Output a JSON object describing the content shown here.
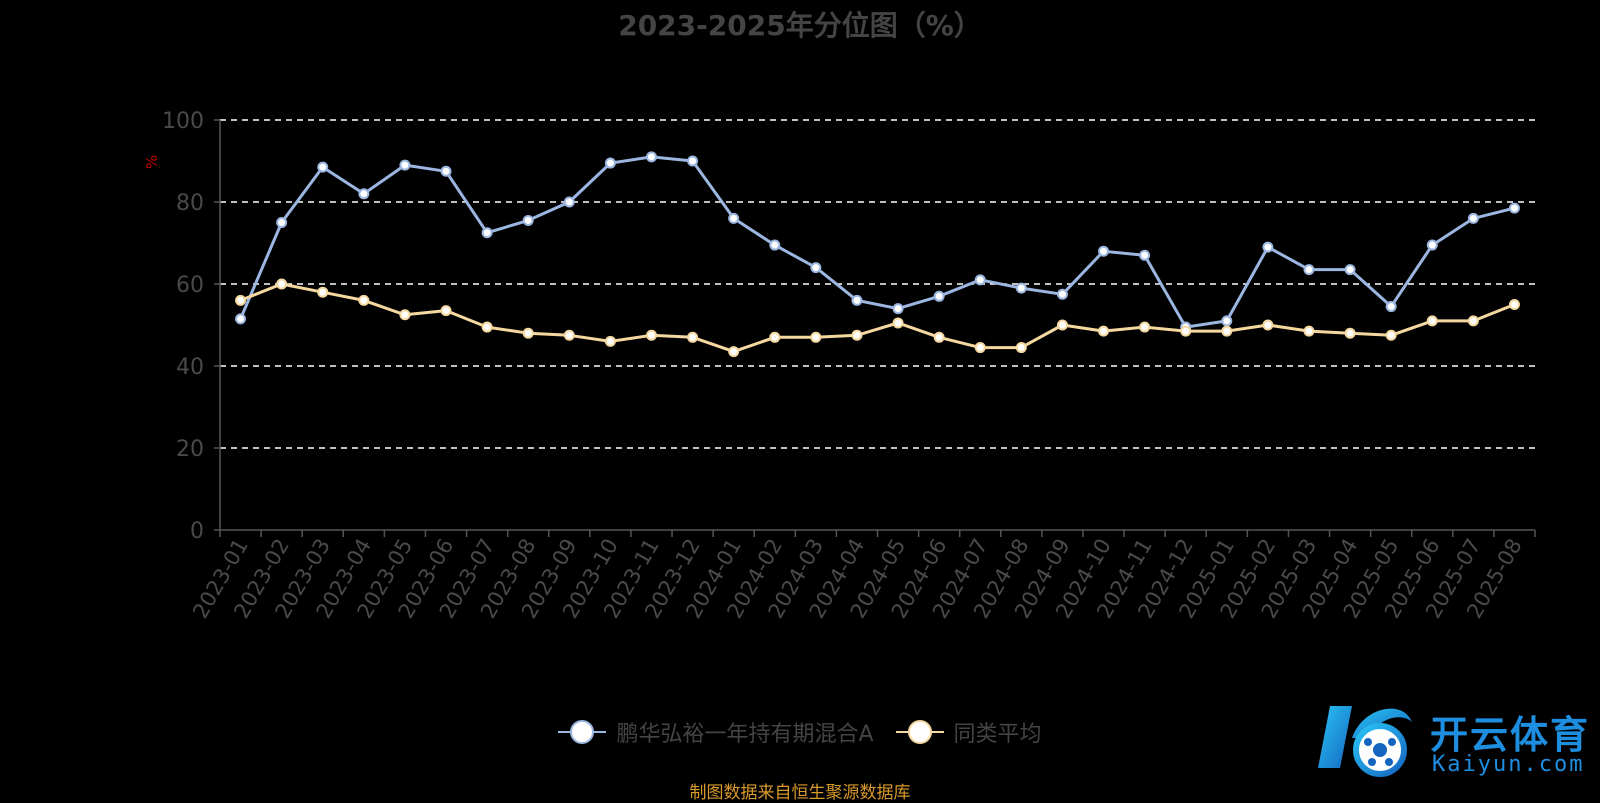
{
  "chart_data": {
    "type": "line",
    "title": "2023-2025年分位图（%）",
    "ylabel": "%",
    "ylim": [
      0,
      100
    ],
    "yticks": [
      0,
      20,
      40,
      60,
      80,
      100
    ],
    "grid": true,
    "legend_position": "bottom",
    "categories": [
      "2023-01",
      "2023-02",
      "2023-03",
      "2023-04",
      "2023-05",
      "2023-06",
      "2023-07",
      "2023-08",
      "2023-09",
      "2023-10",
      "2023-11",
      "2023-12",
      "2024-01",
      "2024-02",
      "2024-03",
      "2024-04",
      "2024-05",
      "2024-06",
      "2024-07",
      "2024-08",
      "2024-09",
      "2024-10",
      "2024-11",
      "2024-12",
      "2025-01",
      "2025-02",
      "2025-03",
      "2025-04",
      "2025-05",
      "2025-06",
      "2025-07",
      "2025-08"
    ],
    "series": [
      {
        "name": "鹏华弘裕一年持有期混合A",
        "color": "#9bb6e0",
        "values": [
          51.5,
          75,
          88.5,
          82,
          89,
          87.5,
          72.5,
          75.5,
          80,
          89.5,
          91,
          90,
          76,
          69.5,
          64,
          56,
          54,
          57,
          61,
          59,
          57.5,
          68,
          67,
          49.5,
          51,
          69,
          63.5,
          63.5,
          54.5,
          69.5,
          76,
          78.5
        ]
      },
      {
        "name": "同类平均",
        "color": "#f5d8a0",
        "values": [
          56,
          60,
          58,
          56,
          52.5,
          53.5,
          49.5,
          48,
          47.5,
          46,
          47.5,
          47,
          43.5,
          47,
          47,
          47.5,
          50.5,
          47,
          44.5,
          44.5,
          50,
          48.5,
          49.5,
          48.5,
          48.5,
          50,
          48.5,
          48,
          47.5,
          51,
          51,
          55
        ]
      }
    ]
  },
  "footer": {
    "source": "制图数据来自恒生聚源数据库"
  },
  "brand": {
    "name": "开云体育",
    "url": "Kaiyun.com",
    "color": "#1e8fe0"
  }
}
